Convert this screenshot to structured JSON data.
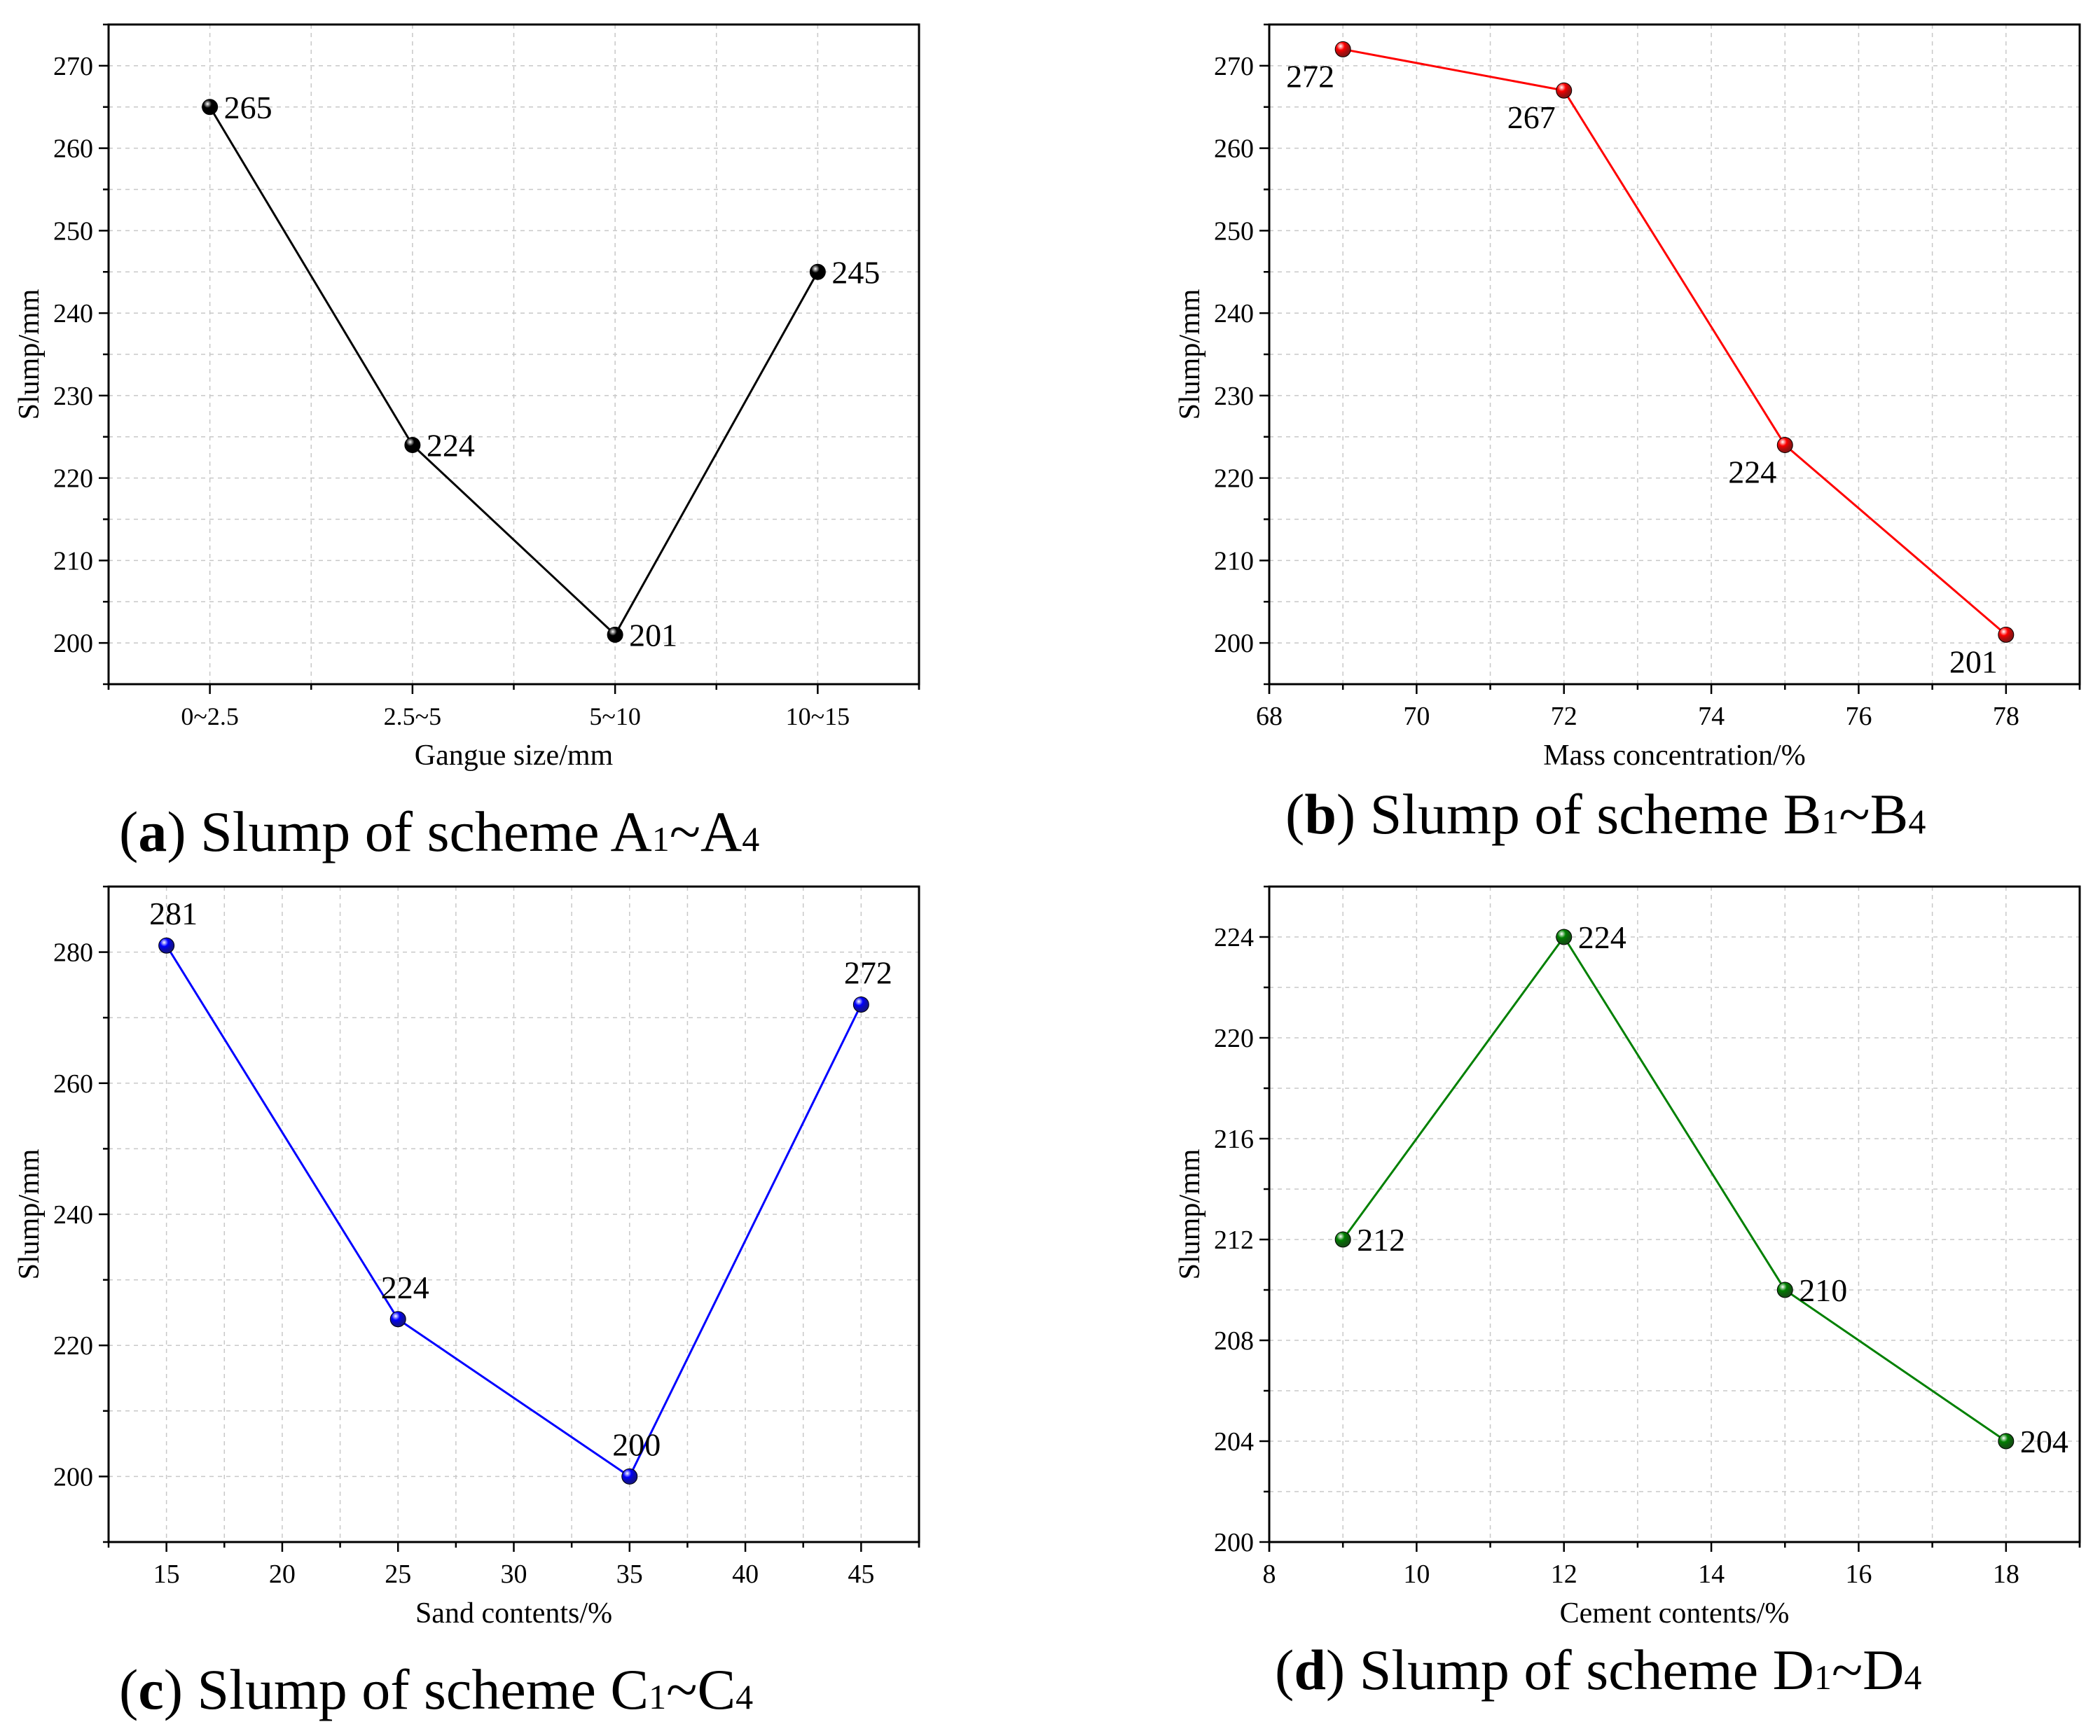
{
  "chart_data": [
    {
      "id": "a",
      "type": "line",
      "x_mode": "categorical",
      "categories": [
        "0~2.5",
        "2.5~5",
        "5~10",
        "10~15"
      ],
      "series": [
        {
          "name": "Slump",
          "values": [
            265,
            224,
            201,
            245
          ],
          "color": "#000000",
          "labels": [
            "265",
            "224",
            "201",
            "245"
          ],
          "label_pos": [
            "right",
            "right",
            "right",
            "right"
          ]
        }
      ],
      "xlabel": "Gangue size/mm",
      "ylabel": "Slump/mm",
      "ylim": [
        195,
        275
      ],
      "yticks": [
        200,
        210,
        220,
        230,
        240,
        250,
        260,
        270
      ],
      "xlim": [
        -0.5,
        3.5
      ],
      "grid": true,
      "caption": {
        "letter": "a",
        "text": " Slump of scheme A",
        "sub1": "1",
        "tilde": "~A",
        "sub2": "4"
      }
    },
    {
      "id": "b",
      "type": "line",
      "x_mode": "numeric",
      "x": [
        69,
        72,
        75,
        78
      ],
      "series": [
        {
          "name": "Slump",
          "values": [
            272,
            267,
            224,
            201
          ],
          "color": "#ff0000",
          "labels": [
            "272",
            "267",
            "224",
            "201"
          ],
          "label_pos": [
            "below-left",
            "below-left",
            "below-left",
            "below-left"
          ]
        }
      ],
      "xlabel": "Mass concentration/%",
      "ylabel": "Slump/mm",
      "ylim": [
        195,
        275
      ],
      "yticks": [
        200,
        210,
        220,
        230,
        240,
        250,
        260,
        270
      ],
      "xlim": [
        68,
        79
      ],
      "xticks": [
        68,
        70,
        72,
        74,
        76,
        78
      ],
      "grid": true,
      "caption": {
        "letter": "b",
        "text": " Slump of scheme B",
        "sub1": "1",
        "tilde": "~B",
        "sub2": "4"
      }
    },
    {
      "id": "c",
      "type": "line",
      "x_mode": "numeric",
      "x": [
        15,
        25,
        35,
        45
      ],
      "series": [
        {
          "name": "Slump",
          "values": [
            281,
            224,
            200,
            272
          ],
          "color": "#0000ff",
          "labels": [
            "281",
            "224",
            "200",
            "272"
          ],
          "label_pos": [
            "above",
            "above",
            "above",
            "above"
          ]
        }
      ],
      "xlabel": "Sand contents/%",
      "ylabel": "Slump/mm",
      "ylim": [
        190,
        290
      ],
      "yticks": [
        200,
        220,
        240,
        260,
        280
      ],
      "xlim": [
        12.5,
        47.5
      ],
      "xticks": [
        15,
        20,
        25,
        30,
        35,
        40,
        45
      ],
      "grid": true,
      "caption": {
        "letter": "c",
        "text": " Slump of scheme C",
        "sub1": "1",
        "tilde": "~C",
        "sub2": "4"
      }
    },
    {
      "id": "d",
      "type": "line",
      "x_mode": "numeric",
      "x": [
        9,
        12,
        15,
        18
      ],
      "series": [
        {
          "name": "Slump",
          "values": [
            212,
            224,
            210,
            204
          ],
          "color": "#008000",
          "labels": [
            "212",
            "224",
            "210",
            "204"
          ],
          "label_pos": [
            "right",
            "right",
            "right",
            "right"
          ]
        }
      ],
      "xlabel": "Cement contents/%",
      "ylabel": "Slump/mm",
      "ylim": [
        200,
        226
      ],
      "yticks": [
        200,
        204,
        208,
        212,
        216,
        220,
        224
      ],
      "xlim": [
        8,
        19
      ],
      "xticks": [
        8,
        10,
        12,
        14,
        16,
        18
      ],
      "grid": true,
      "caption": {
        "letter": "d",
        "text": " Slump of scheme D",
        "sub1": "1",
        "tilde": "~D",
        "sub2": "4"
      }
    }
  ]
}
